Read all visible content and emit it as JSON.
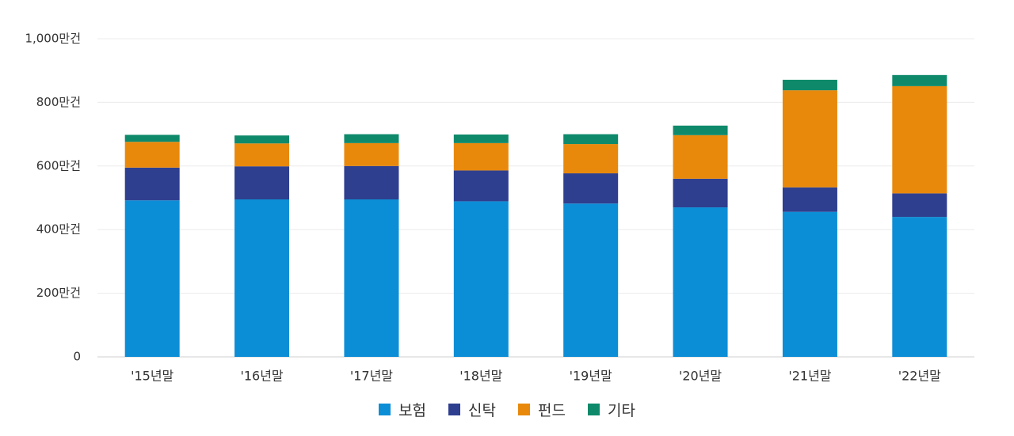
{
  "chart_data": {
    "type": "bar",
    "stacked": true,
    "categories": [
      "'15년말",
      "'16년말",
      "'17년말",
      "'18년말",
      "'19년말",
      "'20년말",
      "'21년말",
      "'22년말"
    ],
    "series": [
      {
        "name": "보험",
        "color": "#0C8ED6",
        "values": [
          492,
          495,
          495,
          489,
          482,
          470,
          456,
          440
        ]
      },
      {
        "name": "신탁",
        "color": "#2E3F8F",
        "values": [
          103,
          104,
          105,
          97,
          95,
          90,
          77,
          74
        ]
      },
      {
        "name": "펀드",
        "color": "#E8890C",
        "values": [
          81,
          72,
          72,
          86,
          92,
          137,
          305,
          337
        ]
      },
      {
        "name": "기타",
        "color": "#0E8A6B",
        "values": [
          22,
          25,
          28,
          27,
          31,
          30,
          33,
          35
        ]
      }
    ],
    "ylim": [
      0,
      1000
    ],
    "yticks": [
      0,
      200,
      400,
      600,
      800,
      1000
    ],
    "ytick_labels": [
      "0",
      "200만건",
      "400만건",
      "600만건",
      "800만건",
      "1,000만건"
    ],
    "grid": true,
    "legend_position": "bottom"
  }
}
